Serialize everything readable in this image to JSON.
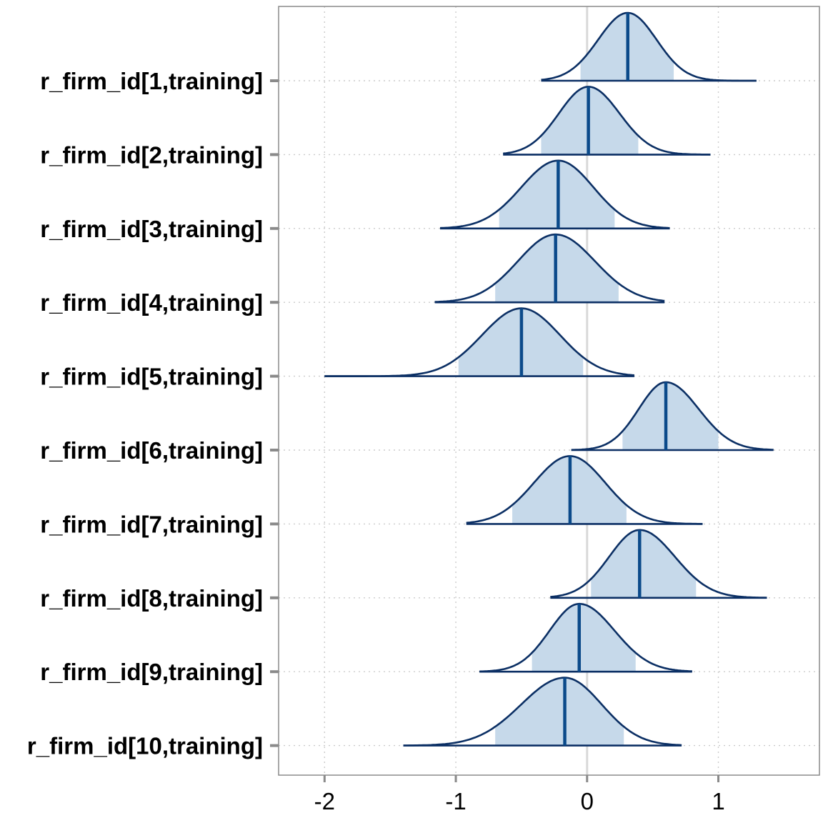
{
  "chart_data": {
    "type": "density-ridges",
    "title": "",
    "xlabel": "",
    "ylabel": "",
    "xlim": [
      -2.35,
      1.77
    ],
    "x_ticks": [
      -2,
      -1,
      0,
      1
    ],
    "x_tick_labels": [
      "-2",
      "-1",
      "0",
      "1"
    ],
    "grid": "dotted",
    "reference_line_x": 0,
    "colors": {
      "fill": "#c6d9ea",
      "outline": "#0b2f64",
      "median": "#0b4a8a",
      "grid": "#cccccc",
      "zero_line": "#d9d9d9",
      "frame": "#8a8a8a"
    },
    "series": [
      {
        "name": "r_firm_id[1,training]",
        "min": -0.35,
        "q_low": -0.05,
        "median": 0.31,
        "q_high": 0.66,
        "max": 1.29
      },
      {
        "name": "r_firm_id[2,training]",
        "min": -0.64,
        "q_low": -0.35,
        "median": 0.01,
        "q_high": 0.39,
        "max": 0.94
      },
      {
        "name": "r_firm_id[3,training]",
        "min": -1.12,
        "q_low": -0.67,
        "median": -0.22,
        "q_high": 0.21,
        "max": 0.63
      },
      {
        "name": "r_firm_id[4,training]",
        "min": -1.16,
        "q_low": -0.7,
        "median": -0.24,
        "q_high": 0.24,
        "max": 0.59
      },
      {
        "name": "r_firm_id[5,training]",
        "min": -2.0,
        "q_low": -0.98,
        "median": -0.5,
        "q_high": -0.03,
        "max": 0.36
      },
      {
        "name": "r_firm_id[6,training]",
        "min": -0.12,
        "q_low": 0.27,
        "median": 0.6,
        "q_high": 1.0,
        "max": 1.42
      },
      {
        "name": "r_firm_id[7,training]",
        "min": -0.92,
        "q_low": -0.57,
        "median": -0.13,
        "q_high": 0.3,
        "max": 0.88
      },
      {
        "name": "r_firm_id[8,training]",
        "min": -0.28,
        "q_low": 0.03,
        "median": 0.4,
        "q_high": 0.83,
        "max": 1.37
      },
      {
        "name": "r_firm_id[9,training]",
        "min": -0.82,
        "q_low": -0.42,
        "median": -0.06,
        "q_high": 0.37,
        "max": 0.8
      },
      {
        "name": "r_firm_id[10,training]",
        "min": -1.4,
        "q_low": -0.7,
        "median": -0.17,
        "q_high": 0.28,
        "max": 0.72
      }
    ]
  }
}
